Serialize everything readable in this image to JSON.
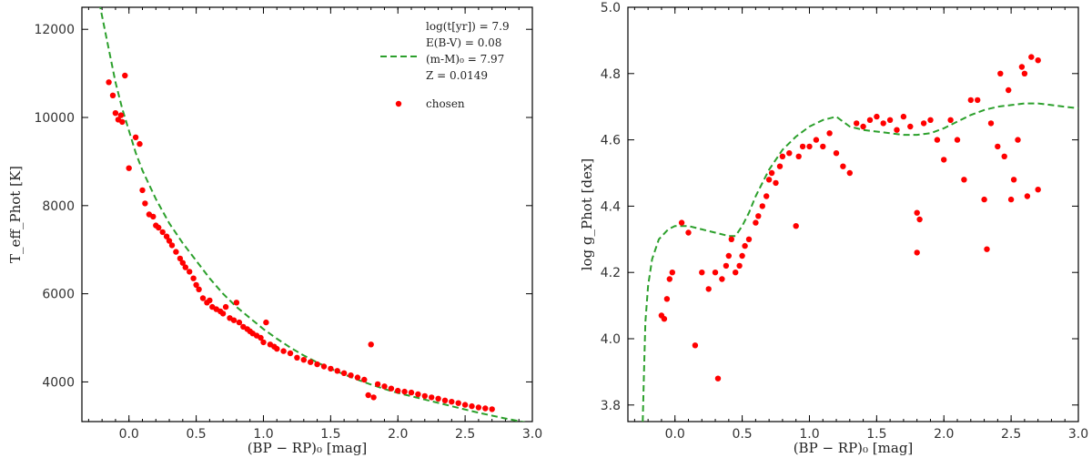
{
  "chart_data": [
    {
      "type": "scatter",
      "xlabel": "(BP − RP)₀ [mag]",
      "ylabel": "T_eff_Phot [K]",
      "xlim": [
        -0.35,
        3.0
      ],
      "ylim": [
        3100,
        12500
      ],
      "xticks": [
        "0.0",
        "0.5",
        "1.0",
        "1.5",
        "2.0",
        "2.5",
        "3.0"
      ],
      "yticks": [
        "4000",
        "6000",
        "8000",
        "10000",
        "12000"
      ],
      "legend": {
        "placement": "top-right",
        "isochrone_lines": [
          "log(t[yr]) = 7.9",
          "E(B-V) = 0.08",
          "(m-M)₀ = 7.97",
          "Z = 0.0149"
        ],
        "points_label": "chosen"
      },
      "colors": {
        "points": "#ff0000",
        "isochrone": "#2ca02c"
      },
      "isochrone": {
        "x": [
          -0.22,
          -0.18,
          -0.14,
          -0.1,
          -0.05,
          0.0,
          0.05,
          0.1,
          0.2,
          0.3,
          0.4,
          0.5,
          0.6,
          0.7,
          0.8,
          0.9,
          1.0,
          1.1,
          1.2,
          1.3,
          1.4,
          1.5,
          1.6,
          1.7,
          1.8,
          1.9,
          2.0,
          2.2,
          2.4,
          2.6,
          2.8,
          3.0
        ],
        "y": [
          12600,
          12000,
          11400,
          10800,
          10200,
          9700,
          9200,
          8800,
          8150,
          7600,
          7150,
          6750,
          6350,
          6000,
          5700,
          5450,
          5200,
          4980,
          4780,
          4600,
          4440,
          4300,
          4170,
          4050,
          3940,
          3840,
          3750,
          3600,
          3450,
          3300,
          3170,
          3050
        ]
      },
      "points": {
        "x": [
          -0.15,
          -0.12,
          -0.1,
          -0.08,
          -0.06,
          -0.05,
          -0.03,
          0.0,
          0.05,
          0.08,
          0.1,
          0.12,
          0.15,
          0.18,
          0.2,
          0.22,
          0.25,
          0.28,
          0.3,
          0.32,
          0.35,
          0.38,
          0.4,
          0.42,
          0.45,
          0.48,
          0.5,
          0.52,
          0.55,
          0.58,
          0.6,
          0.62,
          0.65,
          0.68,
          0.7,
          0.72,
          0.75,
          0.78,
          0.8,
          0.82,
          0.85,
          0.88,
          0.9,
          0.92,
          0.95,
          0.98,
          1.0,
          1.02,
          1.05,
          1.08,
          1.1,
          1.15,
          1.2,
          1.25,
          1.3,
          1.35,
          1.4,
          1.45,
          1.5,
          1.55,
          1.6,
          1.65,
          1.7,
          1.75,
          1.78,
          1.8,
          1.82,
          1.85,
          1.9,
          1.95,
          2.0,
          2.05,
          2.1,
          2.15,
          2.2,
          2.25,
          2.3,
          2.35,
          2.4,
          2.45,
          2.5,
          2.55,
          2.6,
          2.65,
          2.7
        ],
        "y": [
          10800,
          10500,
          10100,
          9950,
          10050,
          9900,
          10950,
          8850,
          9550,
          9400,
          8350,
          8050,
          7800,
          7750,
          7550,
          7500,
          7400,
          7300,
          7200,
          7100,
          6950,
          6800,
          6700,
          6600,
          6500,
          6350,
          6200,
          6100,
          5900,
          5800,
          5850,
          5700,
          5650,
          5600,
          5550,
          5700,
          5450,
          5400,
          5800,
          5350,
          5250,
          5200,
          5150,
          5100,
          5050,
          5000,
          4900,
          5350,
          4850,
          4800,
          4750,
          4700,
          4650,
          4550,
          4500,
          4450,
          4400,
          4350,
          4300,
          4250,
          4200,
          4150,
          4100,
          4050,
          3700,
          4850,
          3650,
          3950,
          3900,
          3850,
          3800,
          3780,
          3760,
          3720,
          3680,
          3650,
          3620,
          3580,
          3550,
          3520,
          3480,
          3450,
          3420,
          3400,
          3380
        ]
      }
    },
    {
      "type": "scatter",
      "xlabel": "(BP − RP)₀ [mag]",
      "ylabel": "log g_Phot [dex]",
      "xlim": [
        -0.35,
        3.0
      ],
      "ylim": [
        3.75,
        5.0
      ],
      "xticks": [
        "0.0",
        "0.5",
        "1.0",
        "1.5",
        "2.0",
        "2.5",
        "3.0"
      ],
      "yticks": [
        "3.8",
        "4.0",
        "4.2",
        "4.4",
        "4.6",
        "4.8",
        "5.0"
      ],
      "colors": {
        "points": "#ff0000",
        "isochrone": "#2ca02c"
      },
      "isochrone": {
        "x": [
          -0.24,
          -0.23,
          -0.22,
          -0.2,
          -0.17,
          -0.12,
          -0.05,
          0.0,
          0.1,
          0.2,
          0.3,
          0.4,
          0.45,
          0.5,
          0.55,
          0.6,
          0.7,
          0.8,
          0.9,
          1.0,
          1.1,
          1.2,
          1.25,
          1.3,
          1.4,
          1.5,
          1.6,
          1.7,
          1.8,
          1.9,
          2.0,
          2.1,
          2.2,
          2.3,
          2.4,
          2.5,
          2.6,
          2.7,
          2.8,
          2.9,
          3.0
        ],
        "y": [
          3.75,
          3.9,
          4.05,
          4.16,
          4.24,
          4.3,
          4.33,
          4.34,
          4.34,
          4.33,
          4.32,
          4.31,
          4.31,
          4.34,
          4.38,
          4.43,
          4.51,
          4.57,
          4.61,
          4.64,
          4.66,
          4.67,
          4.655,
          4.64,
          4.63,
          4.625,
          4.62,
          4.615,
          4.615,
          4.62,
          4.635,
          4.655,
          4.675,
          4.69,
          4.7,
          4.705,
          4.71,
          4.71,
          4.705,
          4.7,
          4.695
        ]
      },
      "points": {
        "x": [
          -0.1,
          -0.08,
          -0.06,
          -0.04,
          -0.02,
          0.05,
          0.1,
          0.15,
          0.2,
          0.25,
          0.3,
          0.32,
          0.35,
          0.38,
          0.4,
          0.42,
          0.45,
          0.48,
          0.5,
          0.52,
          0.55,
          0.6,
          0.62,
          0.65,
          0.68,
          0.7,
          0.72,
          0.75,
          0.78,
          0.8,
          0.85,
          0.9,
          0.92,
          0.95,
          1.0,
          1.05,
          1.1,
          1.15,
          1.2,
          1.25,
          1.3,
          1.35,
          1.4,
          1.45,
          1.5,
          1.55,
          1.6,
          1.65,
          1.7,
          1.75,
          1.8,
          1.8,
          1.82,
          1.85,
          1.9,
          1.95,
          2.0,
          2.05,
          2.1,
          2.15,
          2.2,
          2.25,
          2.3,
          2.32,
          2.35,
          2.4,
          2.42,
          2.45,
          2.48,
          2.5,
          2.52,
          2.55,
          2.58,
          2.6,
          2.62,
          2.65,
          2.7,
          2.7
        ],
        "y": [
          4.07,
          4.06,
          4.12,
          4.18,
          4.2,
          4.35,
          4.32,
          3.98,
          4.2,
          4.15,
          4.2,
          3.88,
          4.18,
          4.22,
          4.25,
          4.3,
          4.2,
          4.22,
          4.25,
          4.28,
          4.3,
          4.35,
          4.37,
          4.4,
          4.43,
          4.48,
          4.5,
          4.47,
          4.52,
          4.55,
          4.56,
          4.34,
          4.55,
          4.58,
          4.58,
          4.6,
          4.58,
          4.62,
          4.56,
          4.52,
          4.5,
          4.65,
          4.64,
          4.66,
          4.67,
          4.65,
          4.66,
          4.63,
          4.67,
          4.64,
          4.38,
          4.26,
          4.36,
          4.65,
          4.66,
          4.6,
          4.54,
          4.66,
          4.6,
          4.48,
          4.72,
          4.72,
          4.42,
          4.27,
          4.65,
          4.58,
          4.8,
          4.55,
          4.75,
          4.42,
          4.48,
          4.6,
          4.82,
          4.8,
          4.43,
          4.85,
          4.45,
          4.84
        ]
      }
    }
  ]
}
